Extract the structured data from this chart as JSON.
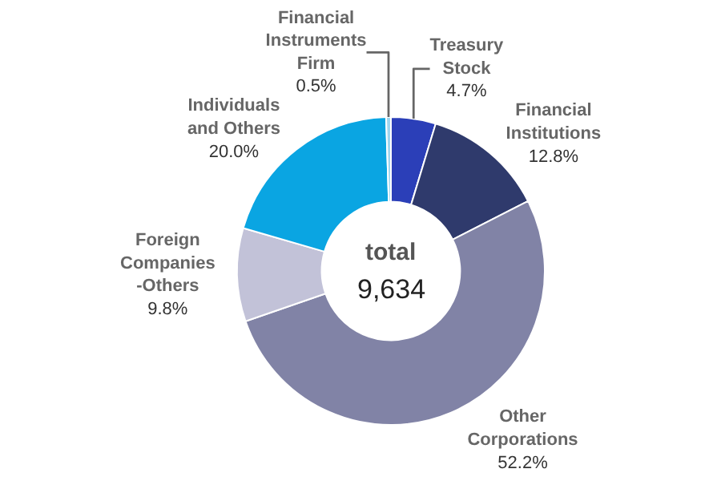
{
  "chart_data": {
    "type": "donut",
    "categories": [
      "Treasury Stock",
      "Financial Institutions",
      "Other Corporations",
      "Foreign Companies -Others",
      "Individuals and Others",
      "Financial Instruments Firm"
    ],
    "values": [
      4.7,
      12.8,
      52.2,
      9.8,
      20.0,
      0.5
    ],
    "value_labels": [
      "4.7%",
      "12.8%",
      "52.2%",
      "9.8%",
      "20.0%",
      "0.5%"
    ],
    "colors": [
      "#2b3fb8",
      "#2f3a6c",
      "#8183a6",
      "#c2c2d8",
      "#0aa5e2",
      "#9fd6ef"
    ],
    "annotations": [
      "total",
      "9,634"
    ],
    "legend": false
  }
}
